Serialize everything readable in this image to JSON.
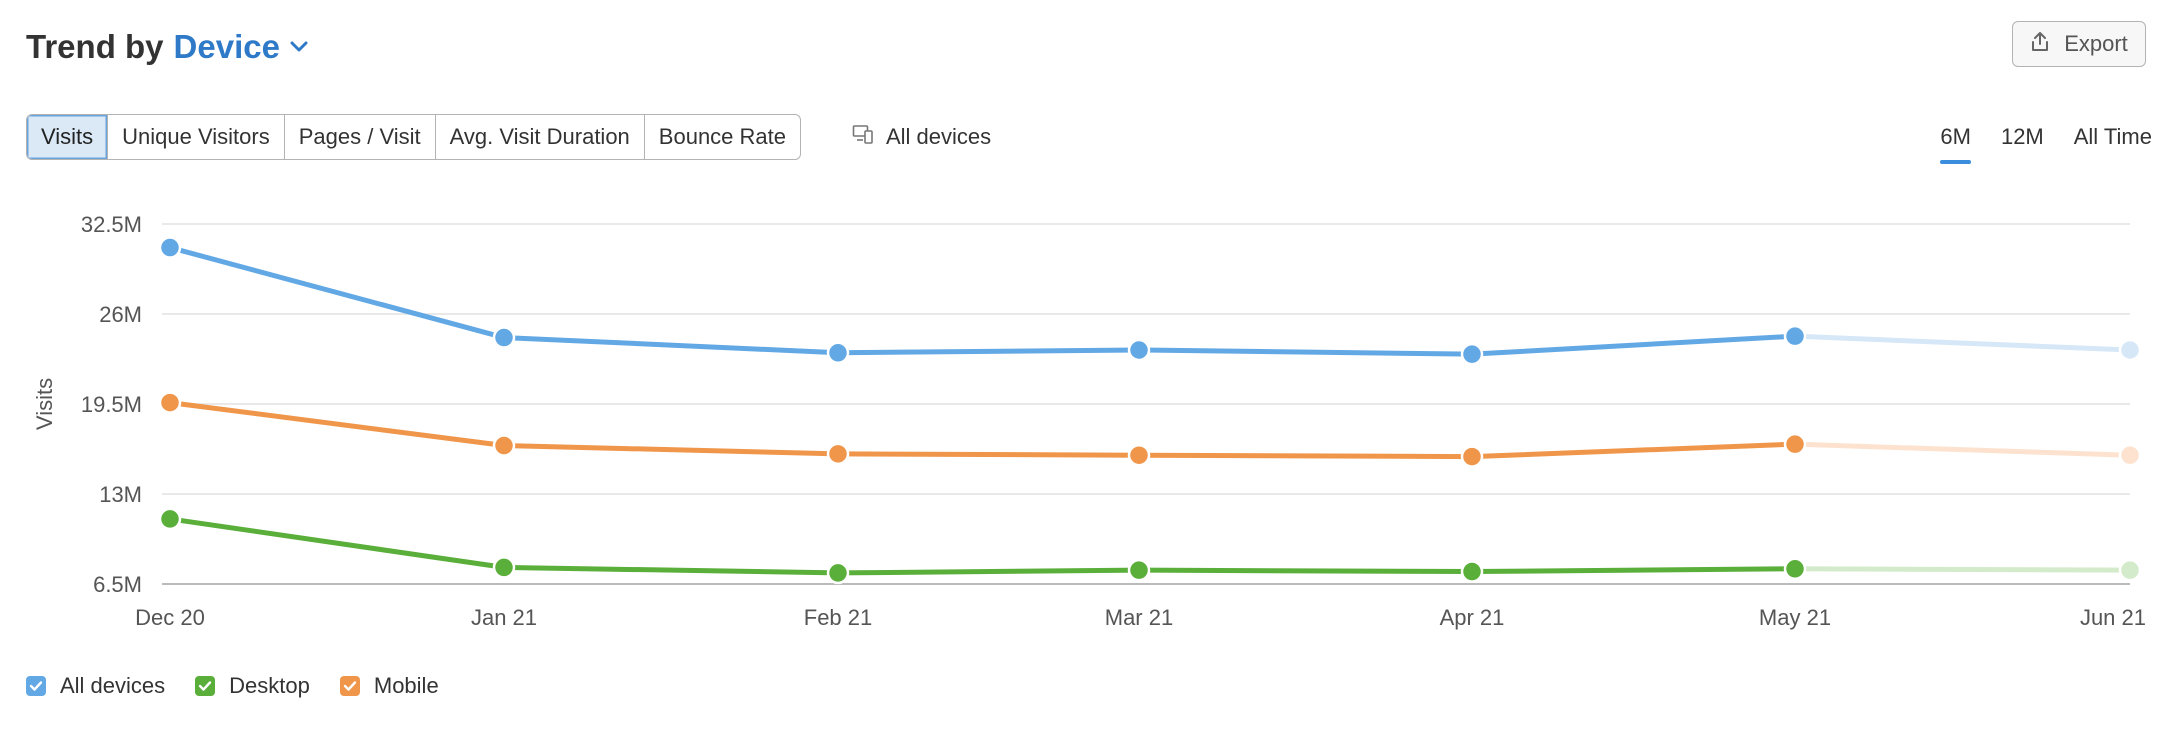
{
  "header": {
    "title_static": "Trend by",
    "title_link": "Device"
  },
  "export": {
    "label": "Export"
  },
  "metric_tabs": [
    {
      "label": "Visits",
      "active": true
    },
    {
      "label": "Unique Visitors",
      "active": false
    },
    {
      "label": "Pages / Visit",
      "active": false
    },
    {
      "label": "Avg. Visit Duration",
      "active": false
    },
    {
      "label": "Bounce Rate",
      "active": false
    }
  ],
  "device_filter": {
    "label": "All devices"
  },
  "period_tabs": [
    {
      "label": "6M",
      "active": true
    },
    {
      "label": "12M",
      "active": false
    },
    {
      "label": "All Time",
      "active": false
    }
  ],
  "colors": {
    "accent": "#2e7ac8",
    "grid": "#e2e2e2",
    "axis": "#bbbbbb"
  },
  "chart_data": {
    "type": "line",
    "ylabel": "Visits",
    "ylim": [
      6.5,
      32.5
    ],
    "yticks": [
      {
        "value": 32.5,
        "label": "32.5M"
      },
      {
        "value": 26,
        "label": "26M"
      },
      {
        "value": 19.5,
        "label": "19.5M"
      },
      {
        "value": 13,
        "label": "13M"
      },
      {
        "value": 6.5,
        "label": "6.5M"
      }
    ],
    "x": [
      "Dec 20",
      "Jan 21",
      "Feb 21",
      "Mar 21",
      "Apr 21",
      "May 21",
      "Jun 21"
    ],
    "projected_from_index": 5,
    "series": [
      {
        "name": "All devices",
        "color": "#62a8e5",
        "faded_color": "#d6e8f7",
        "values": [
          30.8,
          24.3,
          23.2,
          23.4,
          23.1,
          24.4,
          23.4
        ]
      },
      {
        "name": "Mobile",
        "color": "#f0964a",
        "faded_color": "#fde3cf",
        "values": [
          19.6,
          16.5,
          15.9,
          15.8,
          15.7,
          16.6,
          15.8
        ]
      },
      {
        "name": "Desktop",
        "color": "#5aae3a",
        "faded_color": "#d3ebca",
        "values": [
          11.2,
          7.7,
          7.3,
          7.5,
          7.4,
          7.6,
          7.5
        ]
      }
    ],
    "grid": true,
    "legend_position": "bottom-left"
  },
  "legend": [
    {
      "label": "All devices",
      "color": "#62a8e5"
    },
    {
      "label": "Desktop",
      "color": "#5aae3a"
    },
    {
      "label": "Mobile",
      "color": "#f0964a"
    }
  ]
}
